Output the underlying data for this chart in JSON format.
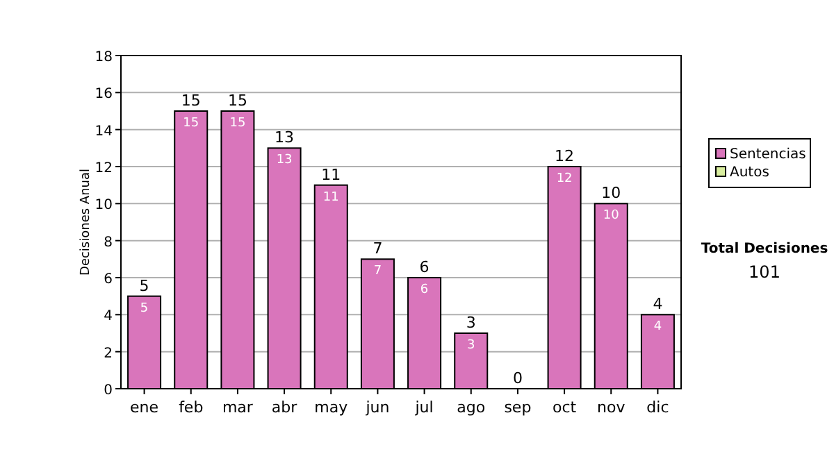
{
  "chart_data": {
    "type": "bar",
    "stacked": true,
    "ylabel": "Decisiones Anual",
    "categories": [
      "ene",
      "feb",
      "mar",
      "abr",
      "may",
      "jun",
      "jul",
      "ago",
      "sep",
      "oct",
      "nov",
      "dic"
    ],
    "series": [
      {
        "name": "Sentencias",
        "color": "#d975bb",
        "values": [
          5,
          15,
          15,
          13,
          11,
          7,
          6,
          3,
          0,
          12,
          10,
          4
        ],
        "value_labels": [
          "5",
          "15",
          "15",
          "13",
          "11",
          "7",
          "6",
          "3",
          null,
          "12",
          "10",
          "4"
        ]
      },
      {
        "name": "Autos",
        "color": "#d9ee9f",
        "values": [
          0,
          0,
          0,
          0,
          0,
          0,
          0,
          0,
          0,
          0,
          0,
          0
        ]
      }
    ],
    "totals": [
      "5",
      "15",
      "15",
      "13",
      "11",
      "7",
      "6",
      "3",
      "0",
      "12",
      "10",
      "4"
    ],
    "ylim": [
      0,
      18
    ],
    "yticks": [
      0,
      2,
      4,
      6,
      8,
      10,
      12,
      14,
      16,
      18
    ],
    "grid": "y",
    "legend": "right",
    "annotations": [
      "Total Decisiones",
      "101"
    ]
  }
}
